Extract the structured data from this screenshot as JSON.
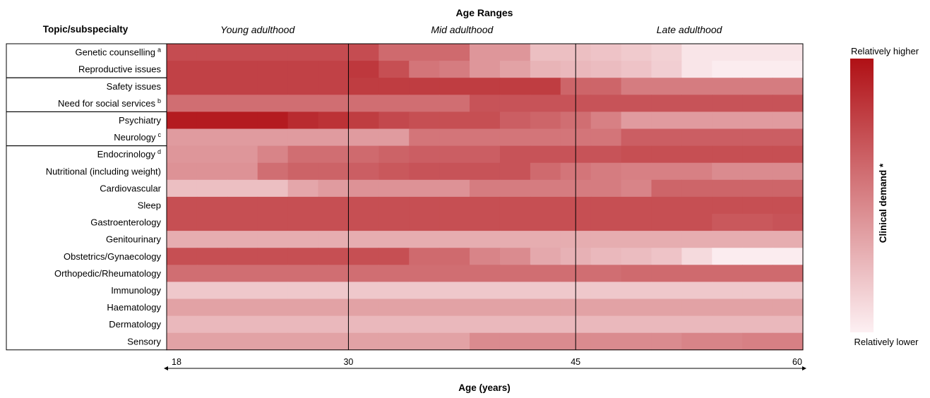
{
  "chart_data": {
    "type": "heatmap",
    "title": "Age Ranges",
    "row_header": "Topic/subspecialty",
    "xlabel": "Age (years)",
    "x_range": [
      18,
      60
    ],
    "x_ticks": [
      "18",
      "30",
      "45",
      "60"
    ],
    "age_ranges": [
      {
        "label": "Young adulthood",
        "from": 18,
        "to": 30
      },
      {
        "label": "Mid adulthood",
        "from": 30,
        "to": 45
      },
      {
        "label": "Late adulthood",
        "from": 45,
        "to": 60
      }
    ],
    "colorbar": {
      "label": "Clinical demand *",
      "high_label": "Relatively higher",
      "low_label": "Relatively lower",
      "high_color": "#b01015",
      "low_color": "#fdf0f3"
    },
    "rows": [
      {
        "label": "Genetic counselling",
        "sup": "a",
        "values": [
          0.73,
          0.73,
          0.73,
          0.73,
          0.73,
          0.73,
          0.73,
          0.6,
          0.6,
          0.6,
          0.4,
          0.4,
          0.22,
          0.22,
          0.2,
          0.17,
          0.14,
          0.05,
          0.05,
          0.05,
          0.05
        ]
      },
      {
        "label": "Reproductive issues",
        "sup": "",
        "values": [
          0.78,
          0.78,
          0.78,
          0.78,
          0.78,
          0.78,
          0.82,
          0.72,
          0.55,
          0.52,
          0.4,
          0.35,
          0.27,
          0.25,
          0.23,
          0.2,
          0.15,
          0.05,
          0.02,
          0.02,
          0.02
        ]
      },
      {
        "label": "Safety issues",
        "sup": "",
        "values": [
          0.78,
          0.78,
          0.78,
          0.78,
          0.78,
          0.78,
          0.8,
          0.8,
          0.8,
          0.8,
          0.8,
          0.8,
          0.8,
          0.62,
          0.62,
          0.52,
          0.52,
          0.52,
          0.52,
          0.52,
          0.52
        ]
      },
      {
        "label": "Need for social services",
        "sup": "b",
        "values": [
          0.58,
          0.58,
          0.58,
          0.58,
          0.58,
          0.58,
          0.58,
          0.58,
          0.58,
          0.58,
          0.7,
          0.7,
          0.7,
          0.7,
          0.7,
          0.7,
          0.7,
          0.7,
          0.7,
          0.7,
          0.7
        ]
      },
      {
        "label": "Psychiatry",
        "sup": "",
        "values": [
          0.95,
          0.95,
          0.95,
          0.95,
          0.88,
          0.85,
          0.8,
          0.75,
          0.72,
          0.72,
          0.72,
          0.65,
          0.62,
          0.58,
          0.5,
          0.38,
          0.38,
          0.38,
          0.38,
          0.38,
          0.38
        ]
      },
      {
        "label": "Neurology",
        "sup": "c",
        "values": [
          0.38,
          0.38,
          0.38,
          0.38,
          0.38,
          0.38,
          0.38,
          0.38,
          0.55,
          0.55,
          0.55,
          0.55,
          0.55,
          0.55,
          0.55,
          0.65,
          0.65,
          0.65,
          0.65,
          0.65,
          0.65
        ]
      },
      {
        "label": "Endocrinology",
        "sup": "d",
        "values": [
          0.4,
          0.4,
          0.4,
          0.48,
          0.58,
          0.58,
          0.6,
          0.63,
          0.65,
          0.65,
          0.65,
          0.7,
          0.7,
          0.7,
          0.7,
          0.72,
          0.72,
          0.72,
          0.72,
          0.72,
          0.72
        ]
      },
      {
        "label": "Nutritional (including weight)",
        "sup": "",
        "values": [
          0.42,
          0.42,
          0.42,
          0.58,
          0.63,
          0.63,
          0.65,
          0.68,
          0.7,
          0.7,
          0.7,
          0.7,
          0.6,
          0.55,
          0.52,
          0.5,
          0.5,
          0.5,
          0.45,
          0.45,
          0.45
        ]
      },
      {
        "label": "Cardiovascular",
        "sup": "",
        "values": [
          0.22,
          0.22,
          0.22,
          0.22,
          0.33,
          0.38,
          0.42,
          0.42,
          0.42,
          0.42,
          0.52,
          0.52,
          0.52,
          0.52,
          0.52,
          0.48,
          0.62,
          0.62,
          0.62,
          0.62,
          0.62
        ]
      },
      {
        "label": "Sleep",
        "sup": "",
        "values": [
          0.72,
          0.72,
          0.72,
          0.72,
          0.72,
          0.72,
          0.72,
          0.72,
          0.72,
          0.72,
          0.72,
          0.72,
          0.72,
          0.72,
          0.72,
          0.72,
          0.72,
          0.72,
          0.72,
          0.72,
          0.72
        ]
      },
      {
        "label": "Gastroenterology",
        "sup": "",
        "values": [
          0.72,
          0.72,
          0.72,
          0.72,
          0.72,
          0.72,
          0.72,
          0.72,
          0.72,
          0.72,
          0.72,
          0.72,
          0.72,
          0.72,
          0.72,
          0.72,
          0.72,
          0.72,
          0.68,
          0.68,
          0.7
        ]
      },
      {
        "label": "Genitourinary",
        "sup": "",
        "values": [
          0.3,
          0.3,
          0.3,
          0.3,
          0.3,
          0.3,
          0.3,
          0.3,
          0.3,
          0.3,
          0.3,
          0.3,
          0.3,
          0.3,
          0.3,
          0.3,
          0.3,
          0.3,
          0.3,
          0.3,
          0.3
        ]
      },
      {
        "label": "Obstetrics/Gynaecology",
        "sup": "",
        "values": [
          0.72,
          0.72,
          0.72,
          0.72,
          0.72,
          0.72,
          0.72,
          0.72,
          0.6,
          0.6,
          0.48,
          0.45,
          0.32,
          0.28,
          0.25,
          0.23,
          0.2,
          0.1,
          0.02,
          0.02,
          0.02
        ]
      },
      {
        "label": "Orthopedic/Rheumatology",
        "sup": "",
        "values": [
          0.58,
          0.58,
          0.58,
          0.58,
          0.58,
          0.58,
          0.58,
          0.58,
          0.58,
          0.58,
          0.58,
          0.58,
          0.58,
          0.58,
          0.58,
          0.6,
          0.6,
          0.6,
          0.6,
          0.6,
          0.6
        ]
      },
      {
        "label": "Immunology",
        "sup": "",
        "values": [
          0.18,
          0.18,
          0.18,
          0.18,
          0.18,
          0.18,
          0.18,
          0.18,
          0.18,
          0.18,
          0.18,
          0.18,
          0.18,
          0.18,
          0.18,
          0.18,
          0.18,
          0.18,
          0.18,
          0.18,
          0.18
        ]
      },
      {
        "label": "Haematology",
        "sup": "",
        "values": [
          0.35,
          0.35,
          0.35,
          0.35,
          0.35,
          0.35,
          0.35,
          0.35,
          0.35,
          0.35,
          0.35,
          0.35,
          0.35,
          0.35,
          0.35,
          0.35,
          0.35,
          0.35,
          0.35,
          0.35,
          0.35
        ]
      },
      {
        "label": "Dermatology",
        "sup": "",
        "values": [
          0.25,
          0.25,
          0.25,
          0.25,
          0.25,
          0.25,
          0.25,
          0.25,
          0.25,
          0.25,
          0.25,
          0.25,
          0.25,
          0.25,
          0.25,
          0.25,
          0.25,
          0.25,
          0.25,
          0.25,
          0.25
        ]
      },
      {
        "label": "Sensory",
        "sup": "",
        "values": [
          0.35,
          0.35,
          0.35,
          0.35,
          0.35,
          0.35,
          0.35,
          0.35,
          0.35,
          0.35,
          0.45,
          0.45,
          0.45,
          0.45,
          0.45,
          0.45,
          0.45,
          0.48,
          0.48,
          0.5,
          0.5
        ]
      }
    ],
    "row_groups": [
      [
        0,
        1
      ],
      [
        2,
        3
      ],
      [
        4,
        5
      ],
      [
        6,
        17
      ]
    ]
  }
}
